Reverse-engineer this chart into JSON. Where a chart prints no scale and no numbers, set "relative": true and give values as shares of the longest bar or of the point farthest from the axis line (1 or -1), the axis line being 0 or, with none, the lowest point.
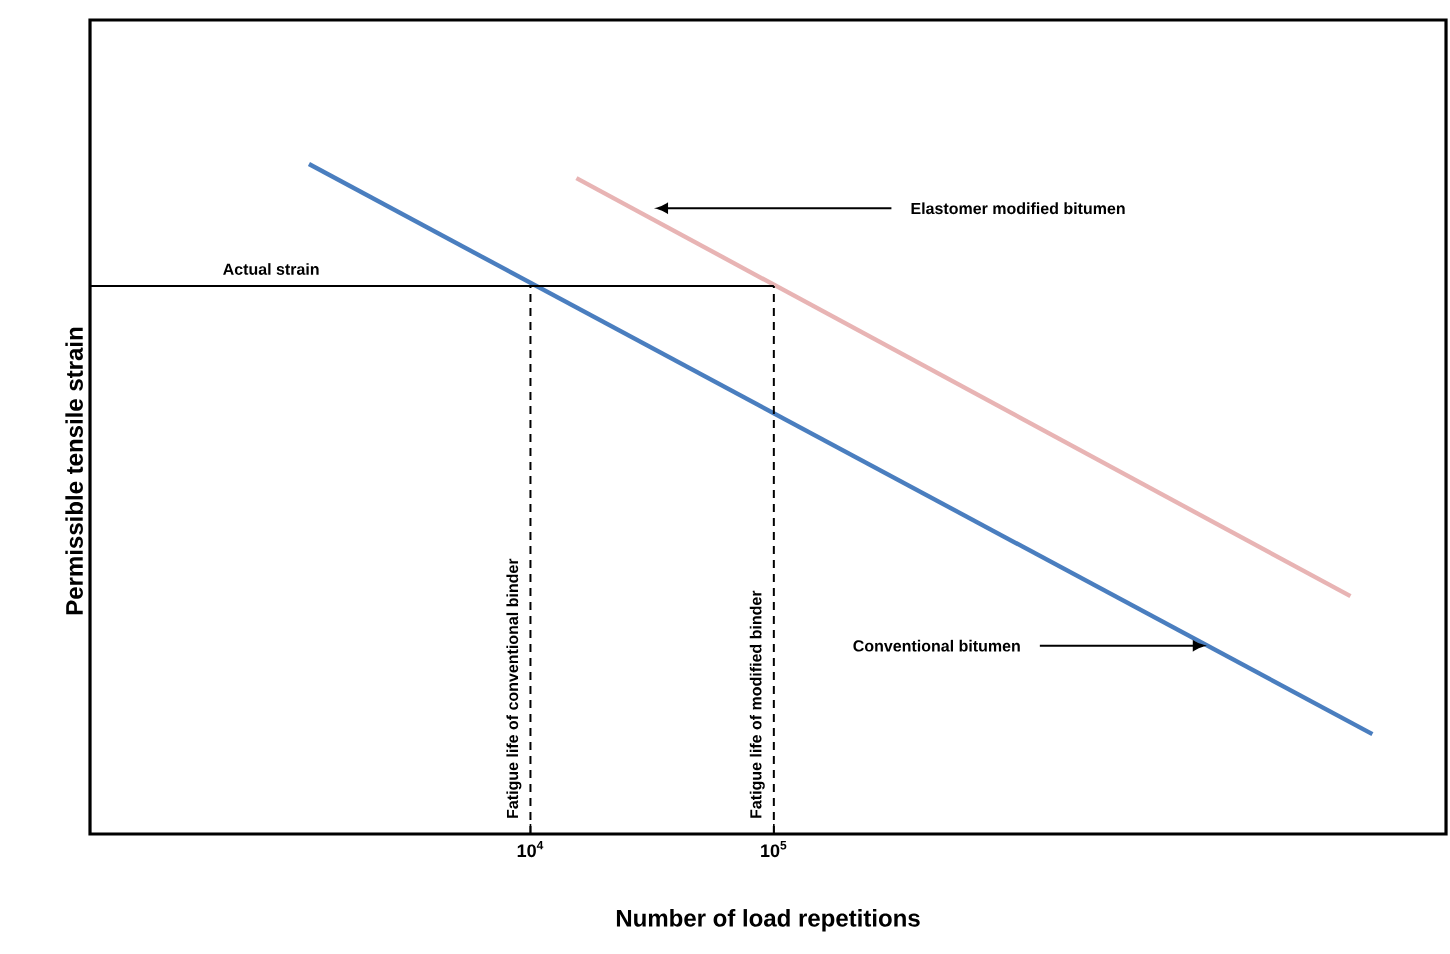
{
  "chart_data": {
    "type": "line",
    "relative": true,
    "log": "x",
    "xlabel": "Number of load repetitions",
    "ylabel": "Permissible tensile strain",
    "xlim": [
      155,
      57800000
    ],
    "xticks": [
      {
        "value": 10000,
        "label": "10$^{4}$"
      },
      {
        "value": 100000,
        "label": "10$^{5}$"
      }
    ],
    "series": [
      {
        "color": "#4a7ebf",
        "x": [
          1230,
          28800000
        ],
        "values": [
          1.0,
          0.149
        ],
        "line_style": "solid"
      },
      {
        "color": "#e8b4b4",
        "x": [
          15450,
          23400000
        ],
        "values": [
          0.979,
          0.355
        ],
        "line_style": "solid"
      },
      {
        "color": "#000000",
        "x": [
          155,
          100000
        ],
        "values": [
          0.818,
          0.818
        ],
        "line_style": "solid"
      }
    ],
    "ref_lines": [
      {
        "axis": "x",
        "value": 10000,
        "label": "Fatigue life of conventional binder",
        "color": "#000000",
        "line_style": "dashed"
      },
      {
        "axis": "x",
        "value": 100000,
        "label": "Fatigue life of modified binder",
        "color": "#000000",
        "line_style": "dashed"
      }
    ],
    "annotations": [
      {
        "text": "Actual strain",
        "x": 860,
        "y": 0.818
      },
      {
        "text": "Elastomer modified bitumen",
        "x": 32200,
        "y": 0.934
      },
      {
        "text": "Conventional bitumen",
        "x": 6010000,
        "y": 0.281
      }
    ]
  }
}
